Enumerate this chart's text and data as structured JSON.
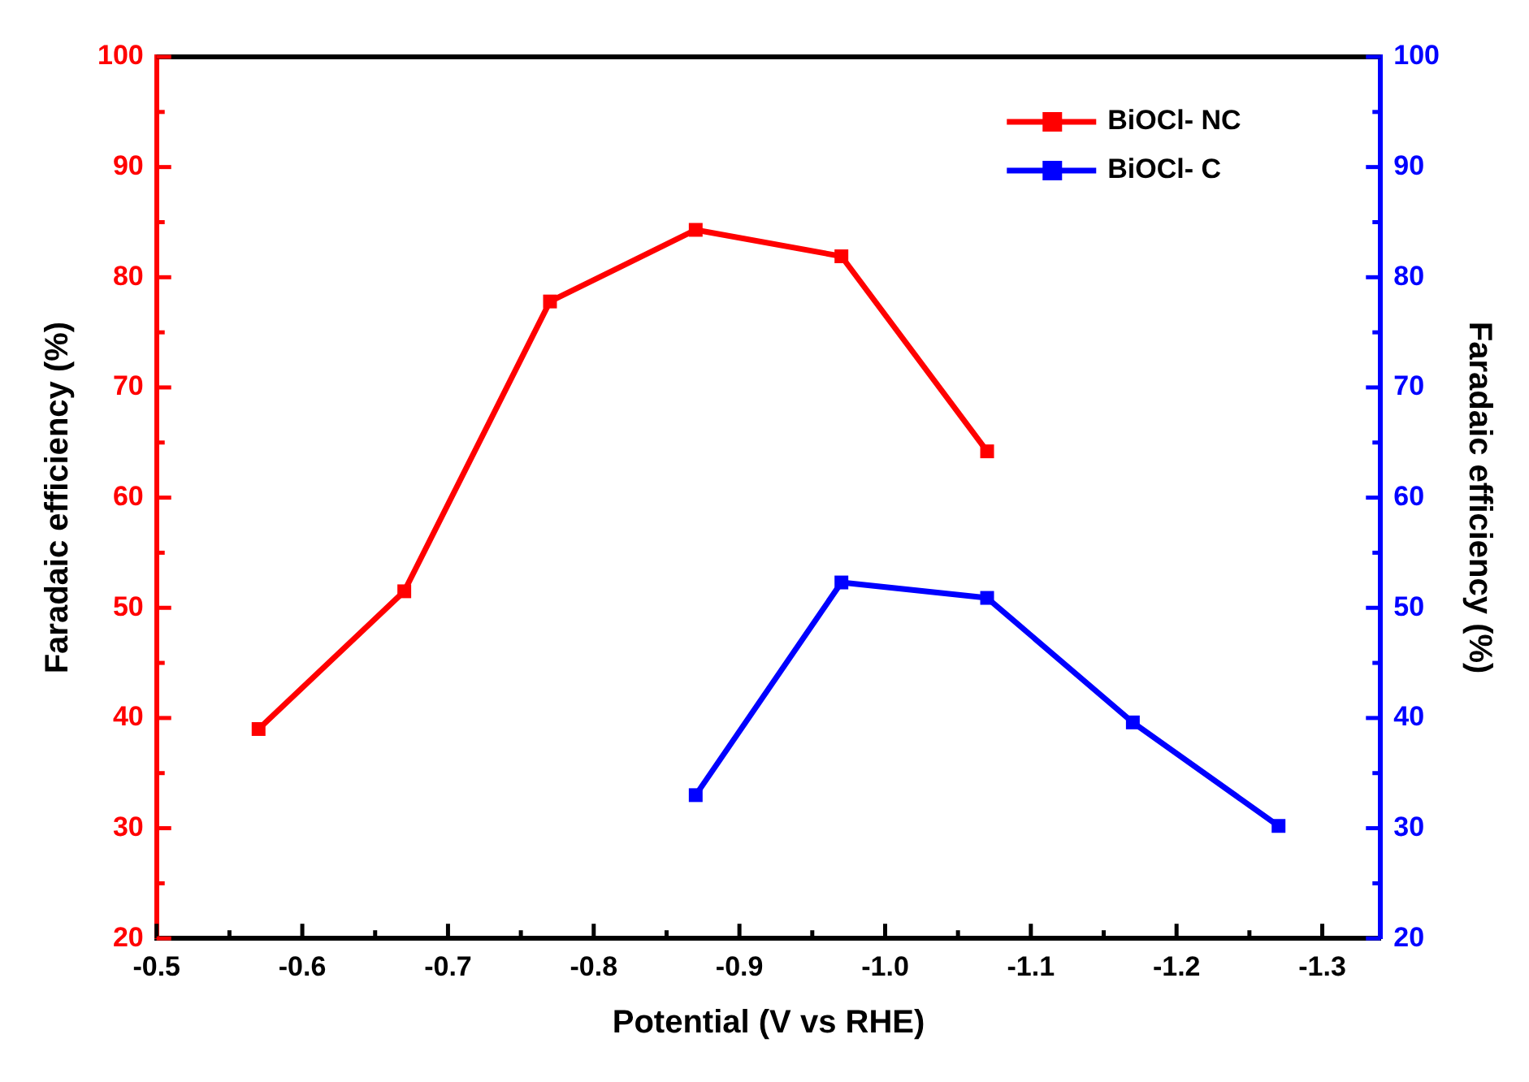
{
  "chart_data": {
    "type": "line",
    "xlabel": "Potential (V vs RHE)",
    "ylabel": "Faradaic efficiency (%)",
    "y2label": "Faradaic efficiency (%)",
    "xlim": [
      -0.5,
      -1.34
    ],
    "xticks": [
      -0.5,
      -0.6,
      -0.7,
      -0.8,
      -0.9,
      {
        "value": -1.0,
        "label": "-1.0"
      },
      -1.1,
      -1.2,
      -1.3,
      {
        "value": -0.55,
        "label": null
      },
      {
        "value": -0.65,
        "label": null
      },
      {
        "value": -0.75,
        "label": null
      },
      {
        "value": -0.85,
        "label": null
      },
      {
        "value": -0.95,
        "label": null
      },
      {
        "value": -1.05,
        "label": null
      },
      {
        "value": -1.15,
        "label": null
      },
      {
        "value": -1.25,
        "label": null
      }
    ],
    "ylim": [
      20,
      100
    ],
    "yticks": [
      20,
      30,
      40,
      50,
      60,
      70,
      80,
      90,
      100,
      {
        "value": 25,
        "label": null
      },
      {
        "value": 35,
        "label": null
      },
      {
        "value": 45,
        "label": null
      },
      {
        "value": 55,
        "label": null
      },
      {
        "value": 65,
        "label": null
      },
      {
        "value": 75,
        "label": null
      },
      {
        "value": 85,
        "label": null
      },
      {
        "value": 95,
        "label": null
      }
    ],
    "y2lim": [
      20,
      100
    ],
    "y2ticks": [
      20,
      30,
      40,
      50,
      60,
      70,
      80,
      90,
      100,
      {
        "value": 25,
        "label": null
      },
      {
        "value": 35,
        "label": null
      },
      {
        "value": 45,
        "label": null
      },
      {
        "value": 55,
        "label": null
      },
      {
        "value": 65,
        "label": null
      },
      {
        "value": 75,
        "label": null
      },
      {
        "value": 85,
        "label": null
      },
      {
        "value": 95,
        "label": null
      }
    ],
    "grid": false,
    "legend": "top right",
    "marker": "square",
    "line_style": "solid",
    "series": [
      {
        "name": "BiOCl- NC",
        "color": "#ff0000",
        "x": [
          -0.57,
          -0.67,
          -0.77,
          -0.87,
          -0.97,
          -1.07
        ],
        "values": [
          39.0,
          51.5,
          77.8,
          84.3,
          81.9,
          64.2
        ]
      },
      {
        "name": "BiOCl- C",
        "color": "#0000ff",
        "axis": "y2",
        "x": [
          -0.87,
          -0.97,
          -1.07,
          -1.17,
          -1.27
        ],
        "values": [
          33.0,
          52.3,
          50.9,
          39.6,
          30.2
        ]
      }
    ]
  }
}
